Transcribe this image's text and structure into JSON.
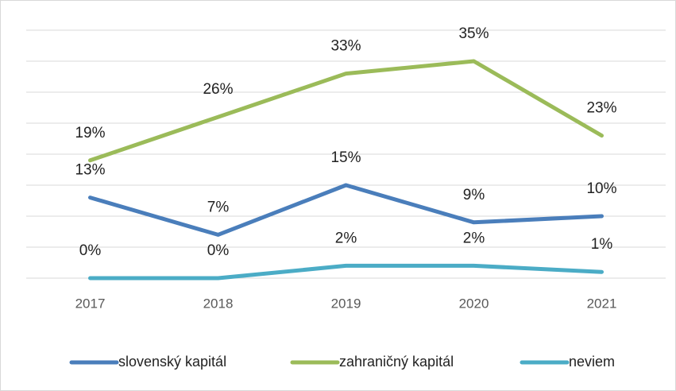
{
  "chart_data": {
    "type": "line",
    "categories": [
      "2017",
      "2018",
      "2019",
      "2020",
      "2021"
    ],
    "series": [
      {
        "name": "slovenský kapitál",
        "color": "#4a7ebb",
        "values": [
          13,
          7,
          15,
          9,
          10
        ],
        "value_labels": [
          "13%",
          "7%",
          "15%",
          "9%",
          "10%"
        ]
      },
      {
        "name": "zahraničný kapitál",
        "color": "#9bbb59",
        "values": [
          19,
          26,
          33,
          35,
          23
        ],
        "value_labels": [
          "19%",
          "26%",
          "33%",
          "35%",
          "23%"
        ]
      },
      {
        "name": "neviem",
        "color": "#4bacc6",
        "values": [
          0,
          0,
          2,
          2,
          1
        ],
        "value_labels": [
          "0%",
          "0%",
          "2%",
          "2%",
          "1%"
        ]
      }
    ],
    "ylim": [
      0,
      40
    ],
    "yticks": [
      0,
      5,
      10,
      15,
      20,
      25,
      30,
      35,
      40
    ],
    "grid": true,
    "legend": "bottom"
  }
}
